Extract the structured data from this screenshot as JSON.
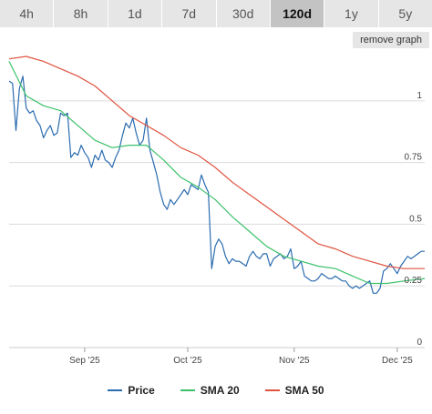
{
  "range_tabs": [
    {
      "label": "4h",
      "active": false
    },
    {
      "label": "8h",
      "active": false
    },
    {
      "label": "1d",
      "active": false
    },
    {
      "label": "7d",
      "active": false
    },
    {
      "label": "30d",
      "active": false
    },
    {
      "label": "120d",
      "active": true
    },
    {
      "label": "1y",
      "active": false
    },
    {
      "label": "5y",
      "active": false
    }
  ],
  "remove_graph_label": "remove graph",
  "chart_data": {
    "type": "line",
    "ylim": [
      0,
      1.18
    ],
    "y_ticks": [
      {
        "value": 0,
        "label": "0"
      },
      {
        "value": 0.25,
        "label": "0.25"
      },
      {
        "value": 0.5,
        "label": "0.5"
      },
      {
        "value": 0.75,
        "label": "0.75"
      },
      {
        "value": 1,
        "label": "1"
      }
    ],
    "xlim": [
      "2025-08-10",
      "2025-12-09"
    ],
    "x_ticks": [
      {
        "value": "2025-09-01",
        "label": "Sep '25"
      },
      {
        "value": "2025-10-01",
        "label": "Oct '25"
      },
      {
        "value": "2025-11-01",
        "label": "Nov '25"
      },
      {
        "value": "2025-12-01",
        "label": "Dec '25"
      }
    ],
    "grid": true,
    "legend_position": "bottom-center",
    "series": [
      {
        "name": "Price",
        "color": "#2b6cb0",
        "points": [
          [
            "2025-08-10",
            1.08
          ],
          [
            "2025-08-11",
            1.07
          ],
          [
            "2025-08-12",
            0.88
          ],
          [
            "2025-08-13",
            1.05
          ],
          [
            "2025-08-14",
            1.1
          ],
          [
            "2025-08-15",
            0.97
          ],
          [
            "2025-08-16",
            0.95
          ],
          [
            "2025-08-17",
            0.96
          ],
          [
            "2025-08-18",
            0.92
          ],
          [
            "2025-08-19",
            0.9
          ],
          [
            "2025-08-20",
            0.85
          ],
          [
            "2025-08-21",
            0.88
          ],
          [
            "2025-08-22",
            0.9
          ],
          [
            "2025-08-23",
            0.86
          ],
          [
            "2025-08-24",
            0.87
          ],
          [
            "2025-08-25",
            0.95
          ],
          [
            "2025-08-26",
            0.94
          ],
          [
            "2025-08-27",
            0.95
          ],
          [
            "2025-08-28",
            0.77
          ],
          [
            "2025-08-29",
            0.79
          ],
          [
            "2025-08-30",
            0.78
          ],
          [
            "2025-08-31",
            0.82
          ],
          [
            "2025-09-01",
            0.79
          ],
          [
            "2025-09-02",
            0.77
          ],
          [
            "2025-09-03",
            0.73
          ],
          [
            "2025-09-04",
            0.78
          ],
          [
            "2025-09-05",
            0.76
          ],
          [
            "2025-09-06",
            0.8
          ],
          [
            "2025-09-07",
            0.76
          ],
          [
            "2025-09-08",
            0.75
          ],
          [
            "2025-09-09",
            0.73
          ],
          [
            "2025-09-10",
            0.77
          ],
          [
            "2025-09-11",
            0.8
          ],
          [
            "2025-09-12",
            0.86
          ],
          [
            "2025-09-13",
            0.91
          ],
          [
            "2025-09-14",
            0.89
          ],
          [
            "2025-09-15",
            0.93
          ],
          [
            "2025-09-16",
            0.87
          ],
          [
            "2025-09-17",
            0.82
          ],
          [
            "2025-09-18",
            0.84
          ],
          [
            "2025-09-19",
            0.93
          ],
          [
            "2025-09-20",
            0.8
          ],
          [
            "2025-09-21",
            0.75
          ],
          [
            "2025-09-22",
            0.7
          ],
          [
            "2025-09-23",
            0.63
          ],
          [
            "2025-09-24",
            0.58
          ],
          [
            "2025-09-25",
            0.56
          ],
          [
            "2025-09-26",
            0.6
          ],
          [
            "2025-09-27",
            0.58
          ],
          [
            "2025-09-28",
            0.6
          ],
          [
            "2025-09-29",
            0.62
          ],
          [
            "2025-09-30",
            0.64
          ],
          [
            "2025-10-01",
            0.62
          ],
          [
            "2025-10-02",
            0.66
          ],
          [
            "2025-10-03",
            0.65
          ],
          [
            "2025-10-04",
            0.64
          ],
          [
            "2025-10-05",
            0.7
          ],
          [
            "2025-10-06",
            0.66
          ],
          [
            "2025-10-07",
            0.63
          ],
          [
            "2025-10-08",
            0.32
          ],
          [
            "2025-10-09",
            0.41
          ],
          [
            "2025-10-10",
            0.44
          ],
          [
            "2025-10-11",
            0.42
          ],
          [
            "2025-10-12",
            0.37
          ],
          [
            "2025-10-13",
            0.34
          ],
          [
            "2025-10-14",
            0.36
          ],
          [
            "2025-10-15",
            0.35
          ],
          [
            "2025-10-16",
            0.35
          ],
          [
            "2025-10-17",
            0.34
          ],
          [
            "2025-10-18",
            0.33
          ],
          [
            "2025-10-19",
            0.37
          ],
          [
            "2025-10-20",
            0.39
          ],
          [
            "2025-10-21",
            0.37
          ],
          [
            "2025-10-22",
            0.36
          ],
          [
            "2025-10-23",
            0.38
          ],
          [
            "2025-10-24",
            0.38
          ],
          [
            "2025-10-25",
            0.33
          ],
          [
            "2025-10-26",
            0.36
          ],
          [
            "2025-10-27",
            0.37
          ],
          [
            "2025-10-28",
            0.38
          ],
          [
            "2025-10-29",
            0.36
          ],
          [
            "2025-10-30",
            0.37
          ],
          [
            "2025-10-31",
            0.4
          ],
          [
            "2025-11-01",
            0.32
          ],
          [
            "2025-11-02",
            0.33
          ],
          [
            "2025-11-03",
            0.35
          ],
          [
            "2025-11-04",
            0.29
          ],
          [
            "2025-11-05",
            0.28
          ],
          [
            "2025-11-06",
            0.27
          ],
          [
            "2025-11-07",
            0.27
          ],
          [
            "2025-11-08",
            0.28
          ],
          [
            "2025-11-09",
            0.3
          ],
          [
            "2025-11-10",
            0.29
          ],
          [
            "2025-11-11",
            0.28
          ],
          [
            "2025-11-12",
            0.28
          ],
          [
            "2025-11-13",
            0.29
          ],
          [
            "2025-11-14",
            0.28
          ],
          [
            "2025-11-15",
            0.27
          ],
          [
            "2025-11-16",
            0.27
          ],
          [
            "2025-11-17",
            0.25
          ],
          [
            "2025-11-18",
            0.24
          ],
          [
            "2025-11-19",
            0.25
          ],
          [
            "2025-11-20",
            0.24
          ],
          [
            "2025-11-21",
            0.25
          ],
          [
            "2025-11-22",
            0.26
          ],
          [
            "2025-11-23",
            0.27
          ],
          [
            "2025-11-24",
            0.22
          ],
          [
            "2025-11-25",
            0.22
          ],
          [
            "2025-11-26",
            0.24
          ],
          [
            "2025-11-27",
            0.31
          ],
          [
            "2025-11-28",
            0.32
          ],
          [
            "2025-11-29",
            0.34
          ],
          [
            "2025-11-30",
            0.32
          ],
          [
            "2025-12-01",
            0.3
          ],
          [
            "2025-12-02",
            0.33
          ],
          [
            "2025-12-03",
            0.35
          ],
          [
            "2025-12-04",
            0.37
          ],
          [
            "2025-12-05",
            0.36
          ],
          [
            "2025-12-06",
            0.37
          ],
          [
            "2025-12-07",
            0.38
          ],
          [
            "2025-12-08",
            0.39
          ],
          [
            "2025-12-09",
            0.39
          ]
        ]
      },
      {
        "name": "SMA 20",
        "color": "#3cc16a",
        "points": [
          [
            "2025-08-10",
            1.16
          ],
          [
            "2025-08-15",
            1.02
          ],
          [
            "2025-08-20",
            0.98
          ],
          [
            "2025-08-25",
            0.96
          ],
          [
            "2025-08-30",
            0.9
          ],
          [
            "2025-09-04",
            0.84
          ],
          [
            "2025-09-09",
            0.81
          ],
          [
            "2025-09-14",
            0.82
          ],
          [
            "2025-09-19",
            0.82
          ],
          [
            "2025-09-24",
            0.76
          ],
          [
            "2025-09-29",
            0.69
          ],
          [
            "2025-10-04",
            0.65
          ],
          [
            "2025-10-09",
            0.6
          ],
          [
            "2025-10-14",
            0.53
          ],
          [
            "2025-10-19",
            0.47
          ],
          [
            "2025-10-24",
            0.41
          ],
          [
            "2025-10-29",
            0.37
          ],
          [
            "2025-11-03",
            0.35
          ],
          [
            "2025-11-08",
            0.33
          ],
          [
            "2025-11-13",
            0.32
          ],
          [
            "2025-11-18",
            0.29
          ],
          [
            "2025-11-23",
            0.26
          ],
          [
            "2025-11-28",
            0.26
          ],
          [
            "2025-12-03",
            0.27
          ],
          [
            "2025-12-09",
            0.28
          ]
        ]
      },
      {
        "name": "SMA 50",
        "color": "#e0533f",
        "points": [
          [
            "2025-08-10",
            1.17
          ],
          [
            "2025-08-15",
            1.18
          ],
          [
            "2025-08-20",
            1.16
          ],
          [
            "2025-08-25",
            1.13
          ],
          [
            "2025-08-30",
            1.1
          ],
          [
            "2025-09-04",
            1.06
          ],
          [
            "2025-09-09",
            1.0
          ],
          [
            "2025-09-14",
            0.94
          ],
          [
            "2025-09-19",
            0.9
          ],
          [
            "2025-09-24",
            0.86
          ],
          [
            "2025-09-29",
            0.81
          ],
          [
            "2025-10-04",
            0.78
          ],
          [
            "2025-10-09",
            0.73
          ],
          [
            "2025-10-14",
            0.67
          ],
          [
            "2025-10-19",
            0.62
          ],
          [
            "2025-10-24",
            0.57
          ],
          [
            "2025-10-29",
            0.52
          ],
          [
            "2025-11-03",
            0.47
          ],
          [
            "2025-11-08",
            0.42
          ],
          [
            "2025-11-13",
            0.4
          ],
          [
            "2025-11-18",
            0.37
          ],
          [
            "2025-11-23",
            0.35
          ],
          [
            "2025-11-28",
            0.33
          ],
          [
            "2025-12-03",
            0.32
          ],
          [
            "2025-12-09",
            0.32
          ]
        ]
      }
    ]
  }
}
